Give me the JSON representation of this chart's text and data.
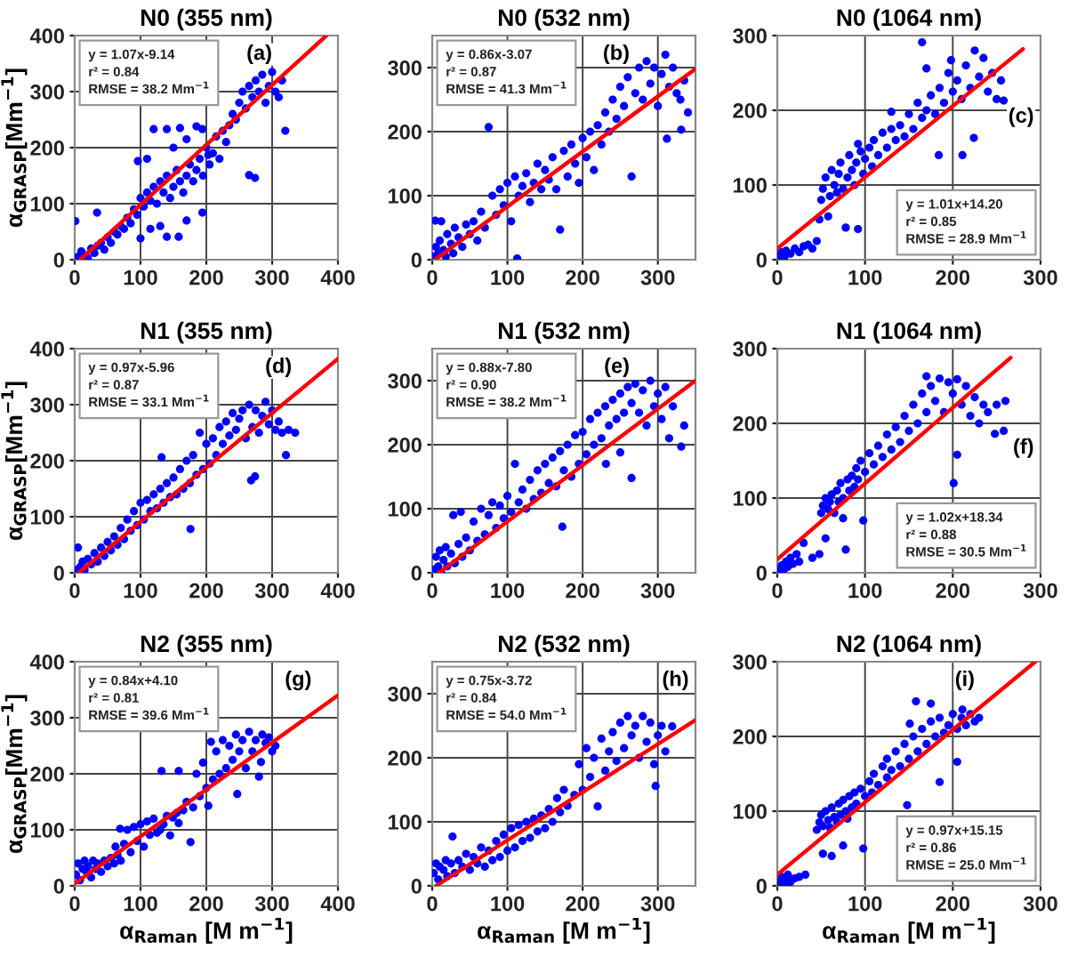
{
  "chart_data": [
    {
      "type": "scatter",
      "title": "N0 (355 nm)",
      "ylabel": "α$_{GRASP}$[Mm$^{−1}$]",
      "xlim": [
        0,
        400
      ],
      "ylim": [
        0,
        400
      ],
      "xticks": [
        0,
        100,
        200,
        300,
        400
      ],
      "yticks": [
        0,
        100,
        200,
        300,
        400
      ],
      "grid": true,
      "annotations": [
        "y = 1.07x-9.14",
        "r² = 0.84",
        "RMSE = 38.2 Mm$^{−1}$",
        "(a)"
      ],
      "series": [
        {
          "color": "#0000ff",
          "marker": "circle",
          "x": [
            5,
            10,
            15,
            20,
            25,
            30,
            35,
            40,
            45,
            50,
            55,
            60,
            65,
            70,
            75,
            80,
            85,
            90,
            95,
            100,
            105,
            110,
            115,
            120,
            125,
            130,
            135,
            140,
            145,
            150,
            155,
            160,
            165,
            170,
            175,
            180,
            185,
            190,
            195,
            200,
            205,
            210,
            215,
            220,
            225,
            230,
            235,
            240,
            245,
            250,
            255,
            260,
            265,
            270,
            275,
            280,
            285,
            290,
            295,
            300,
            305,
            310,
            315,
            320,
            96,
            110,
            120,
            140,
            160,
            185,
            194,
            150,
            170,
            203,
            100,
            140,
            158,
            115,
            130,
            170,
            194,
            1,
            34,
            265,
            274
          ],
          "values": [
            5,
            15,
            8,
            3,
            20,
            12,
            25,
            30,
            18,
            40,
            30,
            50,
            45,
            60,
            55,
            75,
            65,
            90,
            80,
            110,
            95,
            120,
            105,
            130,
            100,
            140,
            120,
            150,
            110,
            130,
            160,
            140,
            120,
            150,
            170,
            140,
            160,
            180,
            150,
            200,
            170,
            190,
            220,
            180,
            230,
            210,
            240,
            260,
            250,
            280,
            300,
            270,
            310,
            290,
            320,
            300,
            330,
            280,
            310,
            335,
            300,
            290,
            320,
            230,
            176,
            180,
            233,
            233,
            235,
            238,
            233,
            200,
            215,
            187,
            38,
            41,
            41,
            55,
            60,
            70,
            84,
            69,
            84,
            151,
            146
          ]
        },
        {
          "type": "line",
          "color": "#ff0000",
          "x": [
            8.5,
            382.4
          ],
          "values": [
            0,
            400
          ]
        }
      ]
    },
    {
      "type": "scatter",
      "title": "N0 (532 nm)",
      "xlim": [
        0,
        350
      ],
      "ylim": [
        0,
        350
      ],
      "xticks": [
        0,
        100,
        200,
        300
      ],
      "yticks": [
        0,
        100,
        200,
        300
      ],
      "grid": true,
      "annotations": [
        "y = 0.86x-3.07",
        "r² = 0.87",
        "RMSE = 41.3 Mm$^{−1}$",
        "(b)"
      ],
      "series": [
        {
          "color": "#0000ff",
          "marker": "circle",
          "x": [
            2,
            5,
            8,
            10,
            12,
            15,
            18,
            20,
            25,
            28,
            30,
            35,
            40,
            45,
            50,
            55,
            60,
            65,
            70,
            75,
            80,
            85,
            90,
            95,
            100,
            105,
            110,
            113,
            115,
            120,
            125,
            130,
            135,
            140,
            145,
            150,
            155,
            160,
            165,
            170,
            175,
            180,
            185,
            190,
            195,
            200,
            205,
            210,
            215,
            220,
            225,
            230,
            235,
            240,
            245,
            250,
            255,
            260,
            265,
            270,
            275,
            280,
            285,
            290,
            295,
            300,
            305,
            310,
            312,
            315,
            320,
            325,
            330,
            331,
            335,
            340,
            4
          ],
          "values": [
            5,
            20,
            10,
            30,
            60,
            15,
            5,
            40,
            25,
            10,
            50,
            35,
            20,
            55,
            40,
            60,
            30,
            75,
            50,
            207,
            100,
            70,
            110,
            85,
            120,
            60,
            130,
            2,
            100,
            115,
            135,
            90,
            120,
            150,
            110,
            140,
            125,
            160,
            110,
            47,
            170,
            130,
            180,
            150,
            120,
            190,
            160,
            200,
            140,
            210,
            180,
            230,
            200,
            250,
            220,
            270,
            240,
            285,
            130,
            260,
            300,
            250,
            310,
            275,
            300,
            240,
            290,
            320,
            189,
            270,
            300,
            260,
            250,
            203,
            280,
            230,
            61
          ]
        },
        {
          "type": "line",
          "color": "#ff0000",
          "x": [
            3.6,
            350
          ],
          "values": [
            0,
            298
          ]
        }
      ]
    },
    {
      "type": "scatter",
      "title": "N0 (1064 nm)",
      "xlim": [
        0,
        300
      ],
      "ylim": [
        0,
        300
      ],
      "xticks": [
        0,
        100,
        200,
        300
      ],
      "yticks": [
        0,
        100,
        200,
        300
      ],
      "grid": true,
      "annotations": [
        "y = 1.01x+14.20",
        "r² = 0.85",
        "RMSE = 28.9 Mm$^{−1}$",
        "(c)"
      ],
      "series": [
        {
          "color": "#0000ff",
          "marker": "circle",
          "x": [
            2,
            5,
            8,
            10,
            15,
            20,
            25,
            30,
            35,
            40,
            45,
            48,
            50,
            52,
            55,
            58,
            60,
            62,
            65,
            68,
            70,
            72,
            75,
            78,
            80,
            82,
            85,
            88,
            90,
            92,
            92,
            95,
            98,
            100,
            105,
            108,
            110,
            115,
            120,
            125,
            130,
            130,
            135,
            140,
            145,
            150,
            155,
            160,
            165,
            165,
            170,
            170,
            175,
            180,
            184,
            185,
            190,
            195,
            198,
            200,
            205,
            210,
            211,
            215,
            220,
            224,
            225,
            230,
            235,
            240,
            245,
            250,
            255,
            258
          ],
          "values": [
            5,
            10,
            3,
            12,
            8,
            15,
            10,
            18,
            20,
            15,
            25,
            54,
            80,
            95,
            110,
            58,
            85,
            120,
            100,
            90,
            115,
            130,
            95,
            43,
            110,
            140,
            120,
            100,
            130,
            41,
            155,
            145,
            115,
            135,
            150,
            125,
            160,
            140,
            170,
            150,
            198,
            175,
            160,
            180,
            165,
            195,
            175,
            210,
            291,
            190,
            256,
            200,
            220,
            195,
            140,
            230,
            210,
            250,
            267,
            225,
            240,
            215,
            140,
            260,
            230,
            163,
            280,
            245,
            270,
            225,
            250,
            215,
            240,
            213
          ]
        },
        {
          "type": "line",
          "color": "#ff0000",
          "x": [
            0,
            280
          ],
          "values": [
            15,
            282
          ]
        }
      ]
    },
    {
      "type": "scatter",
      "title": "N1 (355 nm)",
      "ylabel": "α$_{GRASP}$[Mm$^{−1}$]",
      "xlim": [
        0,
        400
      ],
      "ylim": [
        0,
        400
      ],
      "xticks": [
        0,
        100,
        200,
        300,
        400
      ],
      "yticks": [
        0,
        100,
        200,
        300,
        400
      ],
      "grid": true,
      "annotations": [
        "y = 0.97x-5.96",
        "r² = 0.87",
        "RMSE = 33.1 Mm$^{−1}$",
        "(d)"
      ],
      "series": [
        {
          "color": "#0000ff",
          "marker": "circle",
          "x": [
            3,
            5,
            8,
            12,
            15,
            20,
            25,
            30,
            35,
            40,
            45,
            50,
            55,
            60,
            65,
            70,
            75,
            80,
            85,
            90,
            95,
            100,
            105,
            110,
            115,
            120,
            125,
            130,
            132,
            135,
            140,
            145,
            150,
            155,
            160,
            165,
            170,
            175,
            176,
            180,
            185,
            190,
            195,
            200,
            205,
            210,
            215,
            220,
            225,
            230,
            235,
            240,
            245,
            250,
            255,
            260,
            265,
            268,
            270,
            274,
            275,
            280,
            285,
            290,
            295,
            300,
            305,
            310,
            315,
            321,
            325,
            335
          ],
          "values": [
            5,
            45,
            10,
            20,
            5,
            25,
            15,
            35,
            20,
            45,
            30,
            55,
            40,
            65,
            50,
            80,
            60,
            95,
            75,
            110,
            85,
            125,
            95,
            130,
            110,
            140,
            115,
            150,
            206,
            125,
            160,
            135,
            170,
            140,
            185,
            150,
            200,
            160,
            78,
            210,
            175,
            250,
            185,
            230,
            195,
            240,
            210,
            260,
            230,
            270,
            245,
            285,
            255,
            275,
            290,
            240,
            300,
            165,
            260,
            172,
            290,
            250,
            280,
            305,
            265,
            290,
            255,
            270,
            250,
            210,
            255,
            250
          ]
        },
        {
          "type": "line",
          "color": "#ff0000",
          "x": [
            6.1,
            400
          ],
          "values": [
            0,
            382
          ]
        }
      ]
    },
    {
      "type": "scatter",
      "title": "N1 (532 nm)",
      "xlim": [
        0,
        350
      ],
      "ylim": [
        0,
        350
      ],
      "xticks": [
        0,
        100,
        200,
        300
      ],
      "yticks": [
        0,
        100,
        200,
        300
      ],
      "grid": true,
      "annotations": [
        "y = 0.88x-7.80",
        "r² = 0.90",
        "RMSE = 38.2 Mm$^{−1}$",
        "(e)"
      ],
      "series": [
        {
          "color": "#0000ff",
          "marker": "circle",
          "x": [
            2,
            5,
            8,
            10,
            12,
            15,
            18,
            20,
            25,
            28,
            30,
            35,
            38,
            40,
            45,
            50,
            55,
            60,
            65,
            70,
            75,
            80,
            85,
            90,
            95,
            100,
            105,
            110,
            115,
            120,
            125,
            130,
            135,
            140,
            145,
            150,
            155,
            160,
            165,
            170,
            173,
            175,
            180,
            185,
            190,
            195,
            200,
            205,
            210,
            215,
            220,
            225,
            230,
            231,
            235,
            240,
            245,
            250,
            250,
            255,
            260,
            265,
            265,
            270,
            275,
            280,
            285,
            290,
            295,
            300,
            305,
            310,
            315,
            320,
            331,
            335
          ],
          "values": [
            5,
            25,
            10,
            35,
            0,
            20,
            40,
            10,
            30,
            90,
            15,
            45,
            95,
            25,
            55,
            35,
            80,
            50,
            100,
            60,
            90,
            110,
            70,
            105,
            85,
            120,
            95,
            170,
            110,
            130,
            100,
            145,
            115,
            160,
            125,
            170,
            140,
            180,
            135,
            190,
            72,
            160,
            200,
            150,
            215,
            170,
            220,
            185,
            240,
            200,
            250,
            210,
            260,
            170,
            230,
            270,
            240,
            188,
            280,
            250,
            290,
            148,
            265,
            295,
            250,
            285,
            230,
            300,
            260,
            280,
            240,
            290,
            210,
            260,
            197,
            230
          ]
        },
        {
          "type": "line",
          "color": "#ff0000",
          "x": [
            8.9,
            350
          ],
          "values": [
            0,
            300
          ]
        }
      ]
    },
    {
      "type": "scatter",
      "title": "N1 (1064 nm)",
      "xlim": [
        0,
        300
      ],
      "ylim": [
        0,
        300
      ],
      "xticks": [
        0,
        100,
        200,
        300
      ],
      "yticks": [
        0,
        100,
        200,
        300
      ],
      "grid": true,
      "annotations": [
        "y = 1.02x+18.34",
        "r² = 0.88",
        "RMSE = 30.5 Mm$^{−1}$",
        "(f)"
      ],
      "series": [
        {
          "color": "#0000ff",
          "marker": "circle",
          "x": [
            2,
            5,
            8,
            10,
            12,
            15,
            18,
            22,
            25,
            30,
            40,
            48,
            50,
            52,
            55,
            55,
            58,
            60,
            62,
            65,
            68,
            70,
            72,
            75,
            75,
            78,
            80,
            82,
            85,
            88,
            90,
            92,
            95,
            98,
            100,
            105,
            110,
            115,
            120,
            125,
            130,
            135,
            140,
            145,
            150,
            155,
            160,
            165,
            170,
            170,
            175,
            180,
            185,
            190,
            195,
            200,
            201,
            205,
            205,
            210,
            215,
            220,
            225,
            230,
            235,
            240,
            248,
            250,
            258,
            260
          ],
          "values": [
            3,
            10,
            5,
            15,
            8,
            20,
            12,
            25,
            15,
            40,
            20,
            25,
            80,
            90,
            46,
            100,
            85,
            95,
            105,
            80,
            110,
            95,
            120,
            73,
            100,
            31,
            125,
            110,
            130,
            115,
            140,
            125,
            150,
            70,
            135,
            160,
            145,
            170,
            155,
            185,
            165,
            195,
            175,
            210,
            190,
            225,
            200,
            240,
            263,
            215,
            250,
            230,
            260,
            215,
            255,
            240,
            120,
            259,
            158,
            225,
            250,
            210,
            235,
            200,
            225,
            215,
            186,
            225,
            190,
            230
          ]
        },
        {
          "type": "line",
          "color": "#ff0000",
          "x": [
            0,
            266
          ],
          "values": [
            18,
            288
          ]
        }
      ]
    },
    {
      "type": "scatter",
      "title": "N2 (355 nm)",
      "xlabel": "α$_{Raman}$ [M m$^{−1}$]",
      "ylabel": "α$_{GRASP}$[Mm$^{−1}$]",
      "xlim": [
        0,
        400
      ],
      "ylim": [
        0,
        400
      ],
      "xticks": [
        0,
        100,
        200,
        300,
        400
      ],
      "yticks": [
        0,
        100,
        200,
        300,
        400
      ],
      "grid": true,
      "annotations": [
        "y = 0.84x+4.10",
        "r² = 0.81",
        "RMSE = 39.6 Mm$^{−1}$",
        "(g)"
      ],
      "series": [
        {
          "color": "#0000ff",
          "marker": "circle",
          "x": [
            2,
            5,
            8,
            12,
            15,
            18,
            20,
            25,
            28,
            32,
            35,
            40,
            45,
            50,
            55,
            60,
            62,
            65,
            69,
            70,
            75,
            80,
            85,
            90,
            95,
            100,
            105,
            110,
            114,
            120,
            125,
            130,
            132,
            135,
            140,
            145,
            149,
            155,
            158,
            158,
            165,
            170,
            176,
            180,
            185,
            190,
            195,
            200,
            203,
            207,
            210,
            215,
            220,
            225,
            230,
            235,
            240,
            245,
            247,
            250,
            255,
            260,
            265,
            270,
            275,
            280,
            283,
            285,
            290,
            295,
            300,
            305
          ],
          "values": [
            20,
            40,
            10,
            30,
            45,
            25,
            35,
            15,
            45,
            30,
            40,
            25,
            45,
            35,
            50,
            40,
            70,
            55,
            102,
            45,
            75,
            100,
            60,
            105,
            80,
            110,
            70,
            115,
            91,
            120,
            95,
            100,
            205,
            110,
            125,
            90,
            122,
            130,
            205,
            112,
            135,
            150,
            78,
            140,
            200,
            160,
            220,
            175,
            143,
            257,
            190,
            240,
            200,
            260,
            210,
            250,
            225,
            270,
            164,
            240,
            260,
            210,
            275,
            240,
            260,
            195,
            221,
            270,
            255,
            265,
            240,
            250
          ]
        },
        {
          "type": "line",
          "color": "#ff0000",
          "x": [
            0,
            400
          ],
          "values": [
            4,
            340
          ]
        }
      ]
    },
    {
      "type": "scatter",
      "title": "N2 (532 nm)",
      "xlabel": "α$_{Raman}$ [M m$^{−1}$]",
      "xlim": [
        0,
        350
      ],
      "ylim": [
        0,
        350
      ],
      "xticks": [
        0,
        100,
        200,
        300
      ],
      "yticks": [
        0,
        100,
        200,
        300
      ],
      "grid": true,
      "annotations": [
        "y = 0.75x-3.72",
        "r² = 0.84",
        "RMSE = 54.0 Mm$^{−1}$",
        "(h)"
      ],
      "series": [
        {
          "color": "#0000ff",
          "marker": "circle",
          "x": [
            2,
            5,
            8,
            10,
            15,
            18,
            20,
            25,
            27,
            30,
            35,
            40,
            45,
            50,
            55,
            60,
            65,
            70,
            75,
            80,
            85,
            90,
            95,
            100,
            105,
            110,
            115,
            120,
            125,
            130,
            135,
            140,
            145,
            150,
            155,
            160,
            166,
            170,
            175,
            180,
            189,
            195,
            200,
            205,
            210,
            215,
            220,
            225,
            230,
            235,
            240,
            245,
            250,
            255,
            260,
            265,
            270,
            275,
            280,
            285,
            290,
            295,
            297,
            300,
            305,
            310,
            319
          ],
          "values": [
            20,
            35,
            10,
            30,
            25,
            40,
            15,
            35,
            77,
            20,
            40,
            30,
            50,
            25,
            45,
            35,
            60,
            30,
            55,
            40,
            70,
            45,
            80,
            55,
            90,
            60,
            95,
            70,
            100,
            75,
            105,
            85,
            110,
            90,
            120,
            100,
            137,
            115,
            150,
            125,
            142,
            190,
            150,
            215,
            170,
            200,
            124,
            230,
            180,
            210,
            240,
            195,
            255,
            215,
            265,
            235,
            250,
            200,
            265,
            225,
            255,
            190,
            156,
            235,
            250,
            210,
            249
          ]
        },
        {
          "type": "line",
          "color": "#ff0000",
          "x": [
            5,
            350
          ],
          "values": [
            0,
            259
          ]
        }
      ]
    },
    {
      "type": "scatter",
      "title": "N2 (1064 nm)",
      "xlabel": "α$_{Raman}$ [M m$^{−1}$]",
      "xlim": [
        0,
        300
      ],
      "ylim": [
        0,
        300
      ],
      "xticks": [
        0,
        100,
        200,
        300
      ],
      "yticks": [
        0,
        100,
        200,
        300
      ],
      "grid": true,
      "annotations": [
        "y = 0.97x+15.15",
        "r² = 0.86",
        "RMSE = 25.0 Mm$^{−1}$",
        "(i)"
      ],
      "series": [
        {
          "color": "#0000ff",
          "marker": "circle",
          "x": [
            2,
            5,
            8,
            10,
            12,
            15,
            20,
            25,
            32,
            45,
            48,
            50,
            52,
            52,
            55,
            58,
            60,
            62,
            62,
            65,
            68,
            70,
            72,
            75,
            75,
            78,
            80,
            82,
            85,
            88,
            90,
            95,
            98,
            100,
            105,
            108,
            110,
            115,
            120,
            125,
            125,
            130,
            135,
            140,
            145,
            148,
            150,
            151,
            155,
            158,
            160,
            165,
            170,
            175,
            175,
            180,
            185,
            185,
            190,
            195,
            200,
            205,
            205,
            210,
            211,
            215,
            220,
            225,
            230
          ],
          "values": [
            5,
            12,
            3,
            8,
            15,
            5,
            10,
            12,
            15,
            75,
            85,
            95,
            43,
            80,
            100,
            88,
            78,
            40,
            105,
            92,
            85,
            110,
            95,
            54,
            115,
            100,
            90,
            120,
            105,
            125,
            110,
            130,
            50,
            120,
            140,
            125,
            150,
            135,
            160,
            170,
            145,
            155,
            180,
            160,
            190,
            108,
            170,
            217,
            200,
            247,
            180,
            210,
            190,
            244,
            220,
            200,
            139,
            225,
            205,
            215,
            230,
            166,
            210,
            225,
            236,
            215,
            230,
            220,
            225
          ]
        },
        {
          "type": "line",
          "color": "#ff0000",
          "x": [
            0,
            294
          ],
          "values": [
            15,
            300
          ]
        }
      ]
    }
  ]
}
